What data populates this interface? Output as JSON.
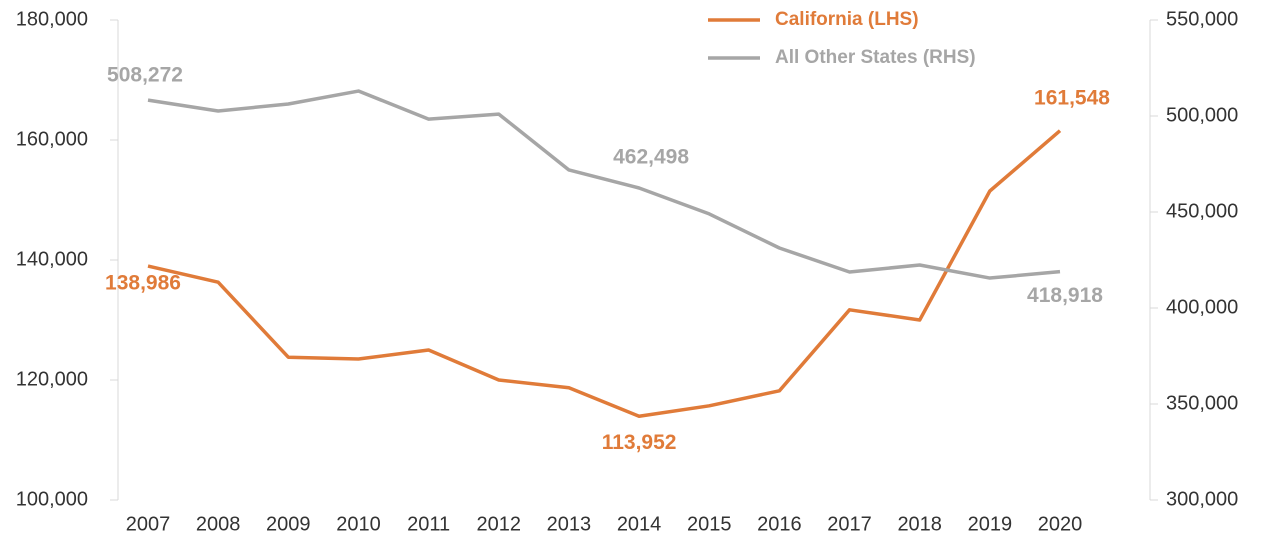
{
  "chart_data": {
    "type": "line",
    "categories": [
      "2007",
      "2008",
      "2009",
      "2010",
      "2011",
      "2012",
      "2013",
      "2014",
      "2015",
      "2016",
      "2017",
      "2018",
      "2019",
      "2020"
    ],
    "series": [
      {
        "name": "California (LHS)",
        "color": "#e07b39",
        "values": [
          138986,
          136300,
          123800,
          123500,
          125000,
          120000,
          118700,
          113952,
          115700,
          118200,
          131700,
          130000,
          151500,
          161548
        ],
        "value_labels": [
          "138,986",
          null,
          null,
          null,
          null,
          null,
          null,
          "113,952",
          null,
          null,
          null,
          null,
          null,
          "161,548"
        ]
      },
      {
        "name": "All Other States (RHS)",
        "color": "#a6a6a6",
        "axis": "y2",
        "values": [
          508272,
          502600,
          506250,
          513000,
          498400,
          501000,
          471900,
          462498,
          449000,
          431250,
          418750,
          422400,
          415600,
          418918
        ],
        "value_labels": [
          "508,272",
          null,
          null,
          null,
          null,
          null,
          null,
          "462,498",
          null,
          null,
          null,
          null,
          null,
          "418,918"
        ]
      }
    ],
    "ylim": [
      100000,
      180000
    ],
    "yticks": [
      {
        "value": 100000,
        "label": "100,000"
      },
      {
        "value": 120000,
        "label": "120,000"
      },
      {
        "value": 140000,
        "label": "140,000"
      },
      {
        "value": 160000,
        "label": "160,000"
      },
      {
        "value": 180000,
        "label": "180,000"
      }
    ],
    "y2lim": [
      300000,
      550000
    ],
    "y2ticks": [
      {
        "value": 300000,
        "label": "300,000"
      },
      {
        "value": 350000,
        "label": "350,000"
      },
      {
        "value": 400000,
        "label": "400,000"
      },
      {
        "value": 450000,
        "label": "450,000"
      },
      {
        "value": 500000,
        "label": "500,000"
      },
      {
        "value": 550000,
        "label": "550,000"
      }
    ],
    "legend": "top-right"
  }
}
